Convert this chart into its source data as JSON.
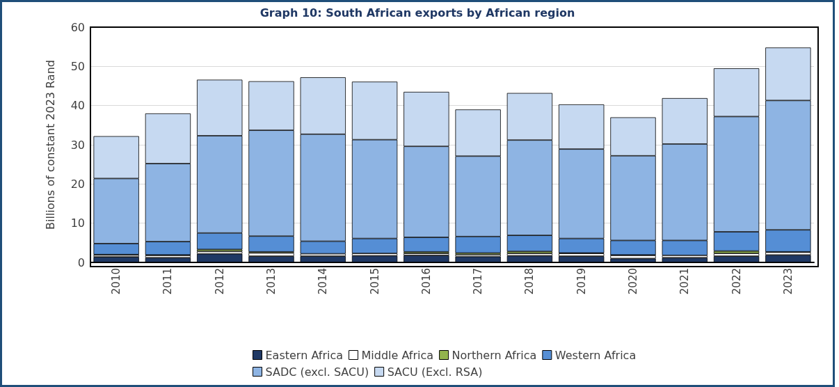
{
  "chart_data": {
    "type": "bar",
    "title": "Graph 10: South African exports by African region",
    "ylabel": "Billions of constant 2023 Rand",
    "stacked": true,
    "grid": "y",
    "legend": "bottom",
    "categories": [
      "2010",
      "2011",
      "2012",
      "2013",
      "2014",
      "2015",
      "2016",
      "2017",
      "2018",
      "2019",
      "2020",
      "2021",
      "2022",
      "2023"
    ],
    "ylim": [
      0,
      60
    ],
    "yticks": [
      0,
      10,
      20,
      30,
      40,
      50,
      60
    ],
    "series": [
      {
        "name": "Eastern Africa",
        "color": "#1f3864",
        "values": [
          1.4,
          1.2,
          2.2,
          1.6,
          1.6,
          1.7,
          1.8,
          1.5,
          1.7,
          1.6,
          1.0,
          1.2,
          1.6,
          1.9
        ]
      },
      {
        "name": "Middle Africa",
        "color": "#ffffff",
        "values": [
          0.5,
          0.6,
          0.6,
          0.8,
          0.6,
          0.6,
          0.5,
          0.5,
          0.6,
          0.7,
          0.8,
          0.6,
          0.7,
          0.7
        ]
      },
      {
        "name": "Northern Africa",
        "color": "#92b44d",
        "values": [
          0.1,
          0.1,
          0.5,
          0.3,
          null,
          null,
          0.4,
          0.4,
          0.5,
          0.1,
          0.1,
          null,
          0.6,
          0.1
        ]
      },
      {
        "name": "Western Africa",
        "color": "#558ed5",
        "values": [
          2.8,
          3.4,
          4.2,
          4.0,
          3.2,
          3.8,
          3.7,
          4.2,
          4.1,
          3.7,
          3.7,
          3.8,
          4.9,
          5.6
        ]
      },
      {
        "name": "SADC (excl. SACU)",
        "color": "#8eb4e3",
        "values": [
          16.6,
          19.9,
          24.8,
          27.0,
          27.3,
          25.2,
          23.2,
          20.5,
          24.3,
          22.8,
          21.6,
          24.6,
          29.4,
          33.0
        ]
      },
      {
        "name": "SACU (Excl. RSA)",
        "color": "#c6d9f1",
        "values": [
          10.8,
          12.8,
          14.3,
          12.5,
          14.5,
          14.8,
          13.9,
          11.9,
          12.0,
          11.4,
          9.8,
          11.7,
          12.3,
          13.5
        ]
      }
    ]
  }
}
